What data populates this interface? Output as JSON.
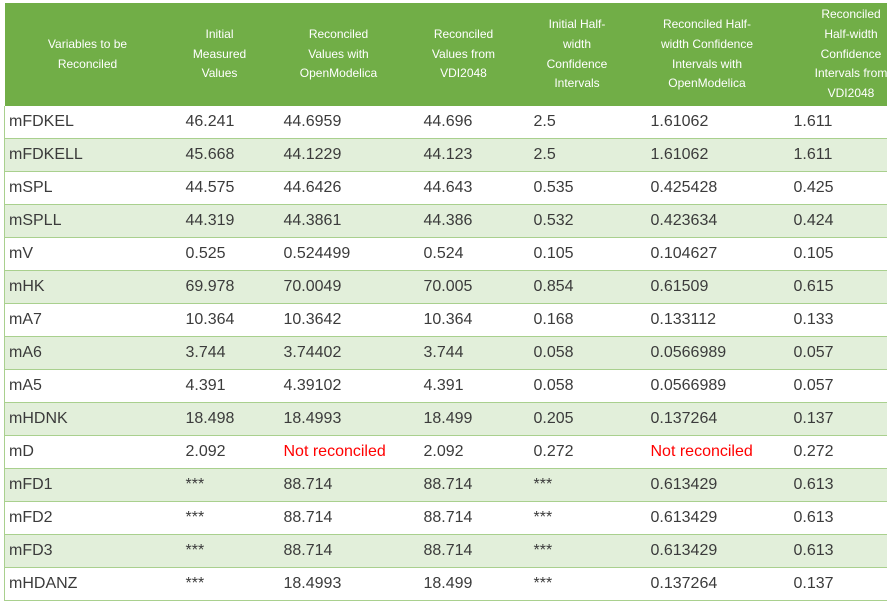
{
  "table": {
    "columns": [
      "Variables to be\nReconciled",
      "Initial\nMeasured\nValues",
      "Reconciled\nValues with\nOpenModelica",
      "Reconciled\nValues from\nVDI2048",
      "Initial Half-\nwidth\nConfidence\nIntervals",
      "Reconciled Half-\nwidth Confidence\nIntervals with\nOpenModelica",
      "Reconciled\nHalf-width\nConfidence\nIntervals from\nVDI2048"
    ],
    "rows": [
      [
        "mFDKEL",
        "46.241",
        "44.6959",
        "44.696",
        "2.5",
        "1.61062",
        "1.611"
      ],
      [
        "mFDKELL",
        "45.668",
        "44.1229",
        "44.123",
        "2.5",
        "1.61062",
        "1.611"
      ],
      [
        "mSPL",
        "44.575",
        "44.6426",
        "44.643",
        "0.535",
        "0.425428",
        "0.425"
      ],
      [
        "mSPLL",
        "44.319",
        "44.3861",
        "44.386",
        "0.532",
        "0.423634",
        "0.424"
      ],
      [
        "mV",
        "0.525",
        "0.524499",
        "0.524",
        "0.105",
        "0.104627",
        "0.105"
      ],
      [
        "mHK",
        "69.978",
        "70.0049",
        "70.005",
        "0.854",
        "0.61509",
        "0.615"
      ],
      [
        "mA7",
        "10.364",
        "10.3642",
        "10.364",
        "0.168",
        "0.133112",
        "0.133"
      ],
      [
        "mA6",
        "3.744",
        "3.74402",
        "3.744",
        "0.058",
        "0.0566989",
        "0.057"
      ],
      [
        "mA5",
        "4.391",
        "4.39102",
        "4.391",
        "0.058",
        "0.0566989",
        "0.057"
      ],
      [
        "mHDNK",
        "18.498",
        "18.4993",
        "18.499",
        "0.205",
        "0.137264",
        "0.137"
      ],
      [
        "mD",
        "2.092",
        "Not reconciled",
        "2.092",
        "0.272",
        "Not reconciled",
        "0.272"
      ],
      [
        "mFD1",
        "***",
        "88.714",
        "88.714",
        "***",
        "0.613429",
        "0.613"
      ],
      [
        "mFD2",
        "***",
        "88.714",
        "88.714",
        "***",
        "0.613429",
        "0.613"
      ],
      [
        "mFD3",
        "***",
        "88.714",
        "88.714",
        "***",
        "0.613429",
        "0.613"
      ],
      [
        "mHDANZ",
        "***",
        "18.4993",
        "18.499",
        "***",
        "0.137264",
        "0.137"
      ]
    ],
    "not_reconciled_text": "Not reconciled",
    "missing_value_text": "***",
    "colors": {
      "header_bg": "#71AE47",
      "header_text": "#FFFFFF",
      "band_bg": "#E2EFDA",
      "row_bg": "#FFFFFF",
      "border": "#A9D08E",
      "text": "#3B3B3B",
      "alert_text": "#FF0000"
    }
  }
}
